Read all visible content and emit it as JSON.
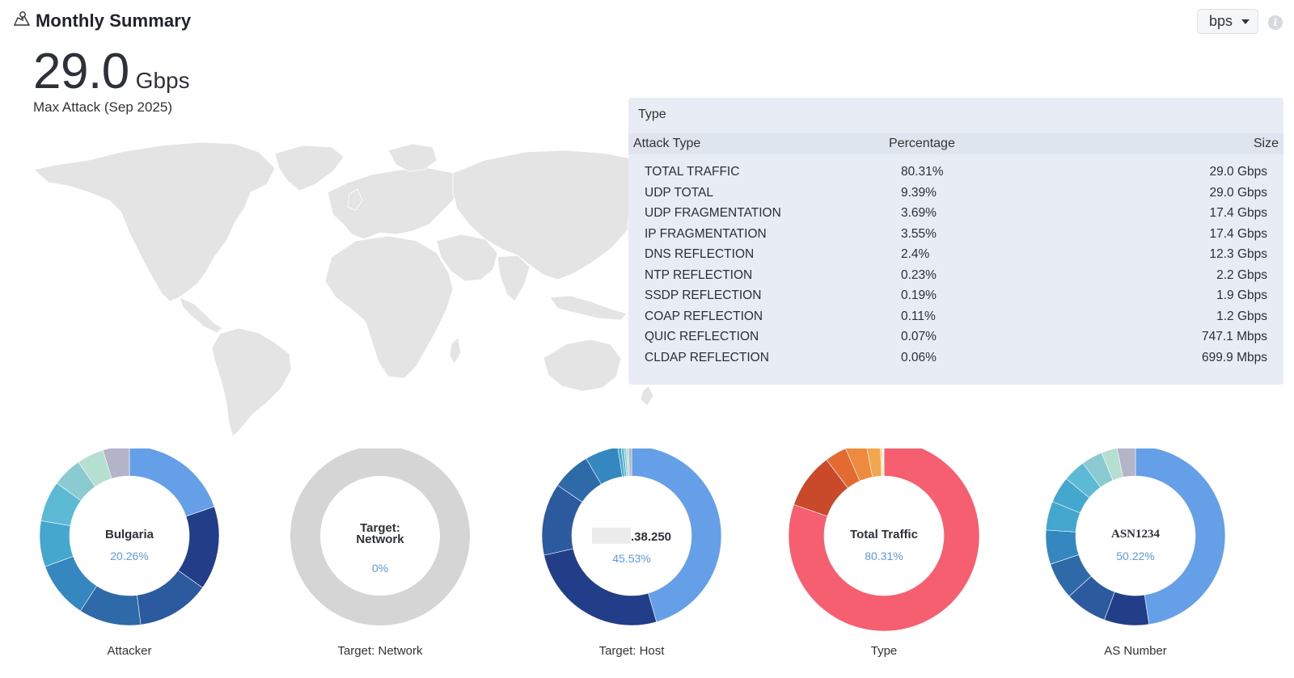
{
  "header": {
    "title": "Monthly Summary",
    "unit_select": "bps"
  },
  "kpi": {
    "value": "29.0",
    "unit": "Gbps",
    "caption": "Max Attack (Sep 2025)"
  },
  "type_panel": {
    "title": "Type",
    "columns": [
      "Attack Type",
      "Percentage",
      "Size"
    ],
    "rows": [
      [
        "TOTAL TRAFFIC",
        "80.31%",
        "29.0 Gbps"
      ],
      [
        "UDP TOTAL",
        "9.39%",
        "29.0 Gbps"
      ],
      [
        "UDP FRAGMENTATION",
        "3.69%",
        "17.4 Gbps"
      ],
      [
        "IP FRAGMENTATION",
        "3.55%",
        "17.4 Gbps"
      ],
      [
        "DNS REFLECTION",
        "2.4%",
        "12.3 Gbps"
      ],
      [
        "NTP REFLECTION",
        "0.23%",
        "2.2 Gbps"
      ],
      [
        "SSDP REFLECTION",
        "0.19%",
        "1.9 Gbps"
      ],
      [
        "COAP REFLECTION",
        "0.11%",
        "1.2 Gbps"
      ],
      [
        "QUIC REFLECTION",
        "0.07%",
        "747.1 Mbps"
      ],
      [
        "CLDAP REFLECTION",
        "0.06%",
        "699.9 Mbps"
      ]
    ]
  },
  "donuts": [
    {
      "caption": "Attacker",
      "center_label": "Bulgaria",
      "center_value": "20.26%",
      "segments": [
        20.26,
        15.5,
        13.5,
        11.5,
        10.5,
        8.5,
        7.5,
        5.5,
        5.0,
        4.9
      ],
      "colors": [
        "#659fe8",
        "#233e88",
        "#2c5a9f",
        "#2f6aa8",
        "#3587bf",
        "#44a7cd",
        "#5cbad4",
        "#8acbd2",
        "#b5dfd1",
        "#b4b4c9"
      ]
    },
    {
      "caption": "Target: Network",
      "center_label": "Target:\nNetwork",
      "center_value": "0%",
      "segments": [
        100
      ],
      "colors": [
        "#d5d5d5"
      ]
    },
    {
      "caption": "Target: Host",
      "center_label": ".38.250",
      "center_value": "45.53%",
      "segments": [
        45.53,
        26.0,
        13.0,
        7.0,
        6.0,
        0.6,
        0.5,
        0.4,
        0.4,
        0.57
      ],
      "colors": [
        "#659fe8",
        "#233e88",
        "#2c5a9f",
        "#2f6aa8",
        "#3587bf",
        "#44a7cd",
        "#5cbad4",
        "#8acbd2",
        "#b5dfd1",
        "#b4b4c9"
      ]
    },
    {
      "caption": "Type",
      "center_label": "Total Traffic",
      "center_value": "80.31%",
      "segments": [
        80.31,
        9.39,
        3.69,
        3.55,
        2.4,
        0.23,
        0.19,
        0.11,
        0.07,
        0.06
      ],
      "colors": [
        "#f65f6f",
        "#c94a2b",
        "#e36a33",
        "#ee8a3d",
        "#f1a64f",
        "#f6c25a",
        "#f7d67a",
        "#f5dc8a",
        "#f0e0a0",
        "#f3e6b3"
      ]
    },
    {
      "caption": "AS Number",
      "center_label": "ASN1234",
      "center_value": "50.22%",
      "segments": [
        50.22,
        8.5,
        8.0,
        7.0,
        6.5,
        5.5,
        5.0,
        4.3,
        4.0,
        3.0,
        3.5
      ],
      "colors": [
        "#659fe8",
        "#233e88",
        "#2c5a9f",
        "#2f6aa8",
        "#3587bf",
        "#44a7cd",
        "#44a7cd",
        "#5cbad4",
        "#8acbd2",
        "#b5dfd1",
        "#b4b4c9"
      ]
    }
  ]
}
